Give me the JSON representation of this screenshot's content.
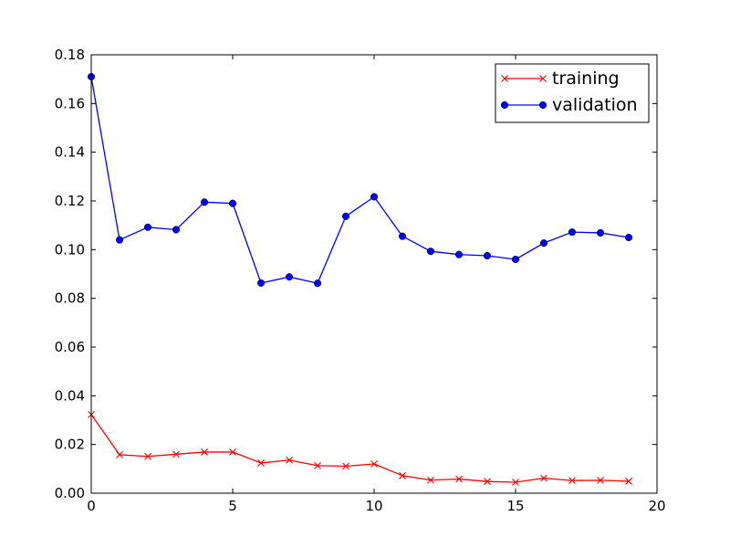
{
  "chart_data": {
    "type": "line",
    "title": "",
    "xlabel": "",
    "ylabel": "",
    "xlim": [
      0,
      20
    ],
    "ylim": [
      0,
      0.18
    ],
    "xticks": [
      0,
      5,
      10,
      15,
      20
    ],
    "yticks": [
      0.0,
      0.02,
      0.04,
      0.06,
      0.08,
      0.1,
      0.12,
      0.14,
      0.16,
      0.18
    ],
    "grid": false,
    "legend_position": "top-right",
    "x": [
      0,
      1,
      2,
      3,
      4,
      5,
      6,
      7,
      8,
      9,
      10,
      11,
      12,
      13,
      14,
      15,
      16,
      17,
      18,
      19
    ],
    "series": [
      {
        "name": "training",
        "color": "#ff0000",
        "marker": "x",
        "values": [
          0.0323,
          0.0158,
          0.0151,
          0.016,
          0.0169,
          0.0169,
          0.0124,
          0.0136,
          0.0113,
          0.0111,
          0.012,
          0.0072,
          0.0054,
          0.0058,
          0.0048,
          0.0045,
          0.0062,
          0.0052,
          0.0053,
          0.0049
        ]
      },
      {
        "name": "validation",
        "color": "#0000ff",
        "marker": "circle",
        "values": [
          0.171,
          0.104,
          0.1092,
          0.1082,
          0.1195,
          0.119,
          0.0863,
          0.0888,
          0.0862,
          0.1137,
          0.1217,
          0.1055,
          0.0993,
          0.098,
          0.0975,
          0.096,
          0.1027,
          0.1072,
          0.1069,
          0.105
        ]
      }
    ]
  }
}
